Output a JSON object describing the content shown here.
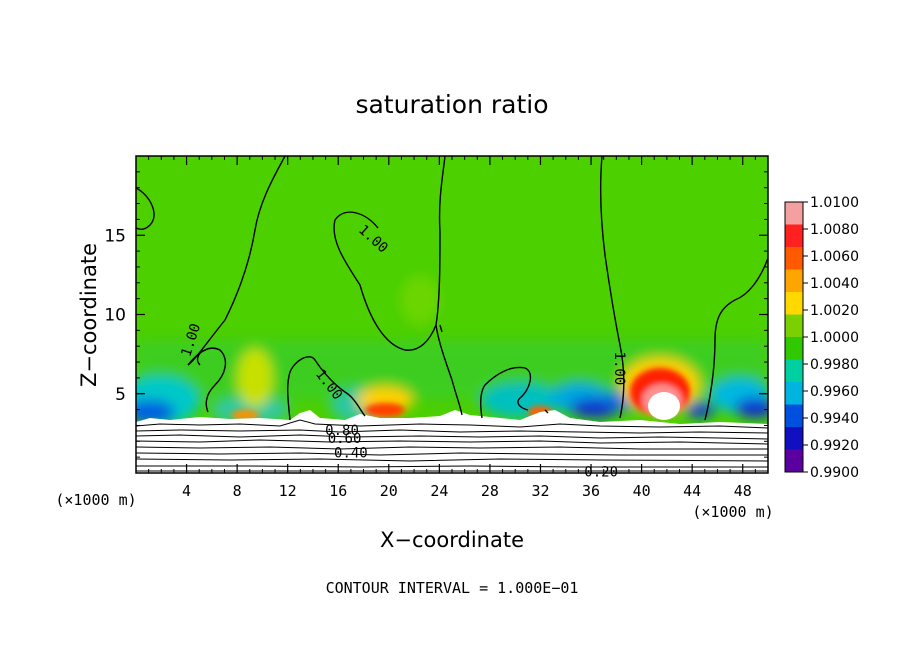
{
  "chart_data": {
    "type": "heatmap",
    "title": "saturation ratio",
    "xlabel": "X−coordinate",
    "ylabel": "Z−coordinate",
    "x_unit": "(×1000 m)",
    "x_unit_right": "(×1000 m)",
    "xlim": [
      0,
      50
    ],
    "ylim": [
      0,
      20
    ],
    "x_ticks": [
      4,
      8,
      12,
      16,
      20,
      24,
      28,
      32,
      36,
      40,
      44,
      48
    ],
    "y_ticks": [
      5,
      10,
      15
    ],
    "footer": "CONTOUR INTERVAL = 1.000E−01",
    "colorbar": {
      "levels": [
        "1.0100",
        "1.0080",
        "1.0060",
        "1.0040",
        "1.0020",
        "1.0000",
        "0.9980",
        "0.9960",
        "0.9940",
        "0.9920",
        "0.9900"
      ],
      "colors": [
        "#f4a0a0",
        "#ff2020",
        "#ff5a00",
        "#ffa500",
        "#ffd800",
        "#7ad000",
        "#30c800",
        "#00d0a0",
        "#00b4e0",
        "#0050e0",
        "#1010c0",
        "#5a00a0"
      ]
    },
    "contour_labels": [
      {
        "text": "1.00",
        "x": 18.8,
        "z": 14.8,
        "angle": 42
      },
      {
        "text": "1.00",
        "x": 4.3,
        "z": 8.4,
        "angle": -72
      },
      {
        "text": "1.00",
        "x": 15.3,
        "z": 5.6,
        "angle": 52
      },
      {
        "text": "1.00",
        "x": 38.3,
        "z": 6.6,
        "angle": 90
      },
      {
        "text": "0.80",
        "x": 16.3,
        "z": 2.7,
        "angle": 0
      },
      {
        "text": "0.60",
        "x": 16.5,
        "z": 2.2,
        "angle": 0
      },
      {
        "text": "0.40",
        "x": 17.0,
        "z": 1.3,
        "angle": 0
      },
      {
        "text": "0.20",
        "x": 36.8,
        "z": 0.1,
        "angle": 0
      }
    ],
    "grid": false,
    "legend": "colorbar-right"
  }
}
